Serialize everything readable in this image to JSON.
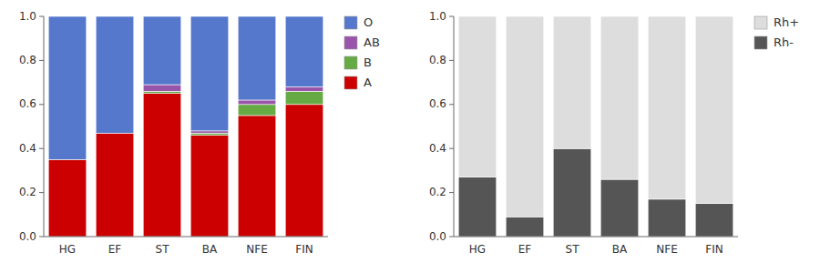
{
  "chart_data": [
    {
      "type": "bar",
      "stacked": true,
      "grid": false,
      "legend": "right",
      "categories": [
        "HG",
        "EF",
        "ST",
        "BA",
        "NFE",
        "FIN"
      ],
      "series": [
        {
          "name": "A",
          "color": "#CC0000",
          "values": [
            0.35,
            0.47,
            0.65,
            0.46,
            0.55,
            0.6
          ]
        },
        {
          "name": "B",
          "color": "#66AA44",
          "values": [
            0.0,
            0.0,
            0.01,
            0.01,
            0.05,
            0.06
          ]
        },
        {
          "name": "AB",
          "color": "#9955AA",
          "values": [
            0.0,
            0.0,
            0.03,
            0.01,
            0.02,
            0.02
          ]
        },
        {
          "name": "O",
          "color": "#5577CC",
          "values": [
            0.65,
            0.53,
            0.31,
            0.52,
            0.38,
            0.32
          ]
        }
      ],
      "ylim": [
        0,
        1.0
      ],
      "yticks": [
        {
          "value": 0.0,
          "label": "0.0"
        },
        0.2,
        0.4,
        0.6,
        0.8,
        {
          "value": 1.0,
          "label": "1.0"
        }
      ]
    },
    {
      "type": "bar",
      "stacked": true,
      "grid": false,
      "legend": "right",
      "categories": [
        "HG",
        "EF",
        "ST",
        "BA",
        "NFE",
        "FIN"
      ],
      "series": [
        {
          "name": "Rh-",
          "color": "#555555",
          "values": [
            0.27,
            0.09,
            0.4,
            0.26,
            0.17,
            0.15
          ]
        },
        {
          "name": "Rh+",
          "color": "#DDDDDD",
          "values": [
            0.73,
            0.91,
            0.6,
            0.74,
            0.83,
            0.85
          ]
        }
      ],
      "ylim": [
        0,
        1.0
      ],
      "yticks": [
        {
          "value": 0.0,
          "label": "0.0"
        },
        0.2,
        0.4,
        0.6,
        0.8,
        {
          "value": 1.0,
          "label": "1.0"
        }
      ]
    }
  ]
}
